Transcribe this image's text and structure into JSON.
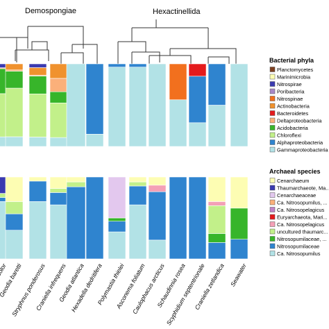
{
  "clades": [
    "Demospongiae",
    "Hexactinellida"
  ],
  "sample_labels": [
    "ericolor",
    "Geodia baretti",
    "Stryphnus ponderosus",
    "Craniella infrequens",
    "Geodia atlantica",
    "Hexadella dedritifera",
    "Polymastia thielei",
    "Asconema foliatum",
    "Caulophacus arcticus",
    "Schaudinnia rosea",
    "Scyphidium septentrionale",
    "Craniella zetlandica",
    "Seawater"
  ],
  "chart_data": [
    {
      "type": "bar",
      "stacked": true,
      "panel": "top",
      "legend_title": "Bacterial phyla",
      "legend_position": "right",
      "categories": [
        "ericolor",
        "Geodia baretti",
        "Stryphnus ponderosus",
        "Craniella infrequens",
        "Geodia atlantica",
        "Hexadella dedritifera",
        "Polymastia thielei",
        "Asconema foliatum",
        "Caulophacus arcticus",
        "Schaudinnia rosea",
        "Scyphidium septentrionale",
        "Craniella zetlandica",
        "Seawater"
      ],
      "series": [
        {
          "name": "Gammaproteobacteria",
          "color": "#b2e2e6",
          "values": [
            10,
            8,
            10,
            8,
            97,
            14,
            49,
            49,
            52,
            52,
            25,
            40,
            90
          ]
        },
        {
          "name": "Alphaproteobacteria",
          "color": "#2f84cf",
          "values": [
            0,
            0,
            0,
            0,
            0,
            80,
            2,
            2,
            0,
            0,
            49,
            40,
            0
          ]
        },
        {
          "name": "Chloroflexi",
          "color": "#c2f08a",
          "values": [
            45,
            40,
            46,
            31,
            0,
            0,
            0,
            0,
            0,
            0,
            0,
            0,
            0
          ]
        },
        {
          "name": "Acidobacteria",
          "color": "#37b52a",
          "values": [
            26,
            14,
            19,
            10,
            0,
            0,
            0,
            0,
            0,
            0,
            0,
            0,
            0
          ]
        },
        {
          "name": "Deltaproteobacteria",
          "color": "#fbb07a",
          "values": [
            1,
            1,
            1,
            12,
            0,
            0,
            0,
            0,
            0,
            0,
            0,
            0,
            0
          ]
        },
        {
          "name": "Bacteroidetes",
          "color": "#e41a1c",
          "values": [
            0,
            0,
            0,
            0,
            0,
            0,
            0,
            0,
            0,
            0,
            13,
            0,
            0
          ]
        },
        {
          "name": "Actinobacteria",
          "color": "#f0922e",
          "values": [
            0,
            5,
            8,
            13,
            0,
            0,
            0,
            0,
            0,
            0,
            0,
            0,
            0
          ]
        },
        {
          "name": "Nitrospinae",
          "color": "#f2701e",
          "values": [
            0,
            0,
            0,
            0,
            0,
            0,
            0,
            0,
            0,
            40,
            0,
            0,
            0
          ]
        },
        {
          "name": "Poribacteria",
          "color": "#a889c8",
          "values": [
            0,
            0,
            0,
            0,
            0,
            0,
            0,
            0,
            0,
            0,
            0,
            0,
            0
          ]
        },
        {
          "name": "Nitrospirae",
          "color": "#3a3ab0",
          "values": [
            4,
            0,
            4,
            0,
            0,
            0,
            0,
            0,
            0,
            0,
            0,
            0,
            0
          ]
        },
        {
          "name": "Marinimicrobia",
          "color": "#fdfdb3",
          "values": [
            0,
            0,
            0,
            0,
            0,
            0,
            0,
            0,
            0,
            0,
            0,
            0,
            0
          ]
        },
        {
          "name": "Planctomycetes",
          "color": "#7d3f1f",
          "values": [
            0,
            0,
            0,
            0,
            0,
            0,
            0,
            0,
            0,
            0,
            0,
            0,
            0
          ]
        }
      ]
    },
    {
      "type": "bar",
      "stacked": true,
      "panel": "bottom",
      "legend_title": "Archaeal species",
      "legend_position": "right",
      "categories": [
        "ericolor",
        "Geodia baretti",
        "Stryphnus ponderosus",
        "Craniella infrequens",
        "Geodia atlantica",
        "Hexadella dedritifera",
        "Polymastia thielei",
        "Asconema foliatum",
        "Caulophacus arcticus",
        "Schaudinnia rosea",
        "Scyphidium septentrionale",
        "Craniella zetlandica",
        "Seawater"
      ],
      "series": [
        {
          "name": "Ca. Nitrosopumilus",
          "color": "#b2e2e6",
          "values": [
            70,
            35,
            70,
            66,
            0,
            0,
            33,
            66,
            23,
            0,
            0,
            0,
            0
          ]
        },
        {
          "name": "Nitrosopumilaceae",
          "color": "#2f84cf",
          "values": [
            5,
            20,
            25,
            15,
            88,
            100,
            13,
            23,
            59,
            100,
            100,
            20,
            24
          ]
        },
        {
          "name": "Nitrosopumilaceae, ...",
          "color": "#37b52a",
          "values": [
            0,
            0,
            0,
            0,
            0,
            0,
            4,
            0,
            0,
            0,
            0,
            11,
            38
          ]
        },
        {
          "name": "uncultured thaumarc...",
          "color": "#c2f08a",
          "values": [
            5,
            15,
            0,
            5,
            6,
            0,
            0,
            5,
            0,
            0,
            0,
            34,
            0
          ]
        },
        {
          "name": "Ca. Nitrosopelagicus",
          "color": "#f4a0b6",
          "values": [
            0,
            0,
            0,
            0,
            0,
            0,
            0,
            0,
            8,
            0,
            0,
            5,
            0
          ]
        },
        {
          "name": "Euryarchaeota, Mari...",
          "color": "#e41a1c",
          "values": [
            0,
            0,
            0,
            0,
            0,
            0,
            0,
            0,
            0,
            0,
            0,
            0,
            0
          ]
        },
        {
          "name": "Ca. Nitrosopelagicus",
          "color": "#c084c8",
          "values": [
            0,
            0,
            0,
            0,
            0,
            0,
            0,
            0,
            0,
            0,
            0,
            0,
            0
          ]
        },
        {
          "name": "Ca. Nitrosopumilus, ...",
          "color": "#fbb07a",
          "values": [
            0,
            0,
            0,
            0,
            0,
            0,
            0,
            0,
            0,
            0,
            0,
            0,
            0
          ]
        },
        {
          "name": "Cenarchaeaceae",
          "color": "#e3c8ee",
          "values": [
            0,
            0,
            0,
            0,
            0,
            0,
            50,
            0,
            0,
            0,
            0,
            0,
            0
          ]
        },
        {
          "name": "Thaumarchaeote, Ma...",
          "color": "#3a3ab0",
          "values": [
            20,
            0,
            0,
            0,
            0,
            0,
            0,
            0,
            0,
            0,
            0,
            0,
            0
          ]
        },
        {
          "name": "Cenarchaeum",
          "color": "#fdfdb3",
          "values": [
            0,
            30,
            5,
            14,
            6,
            0,
            0,
            6,
            10,
            0,
            0,
            30,
            38
          ]
        }
      ]
    }
  ]
}
